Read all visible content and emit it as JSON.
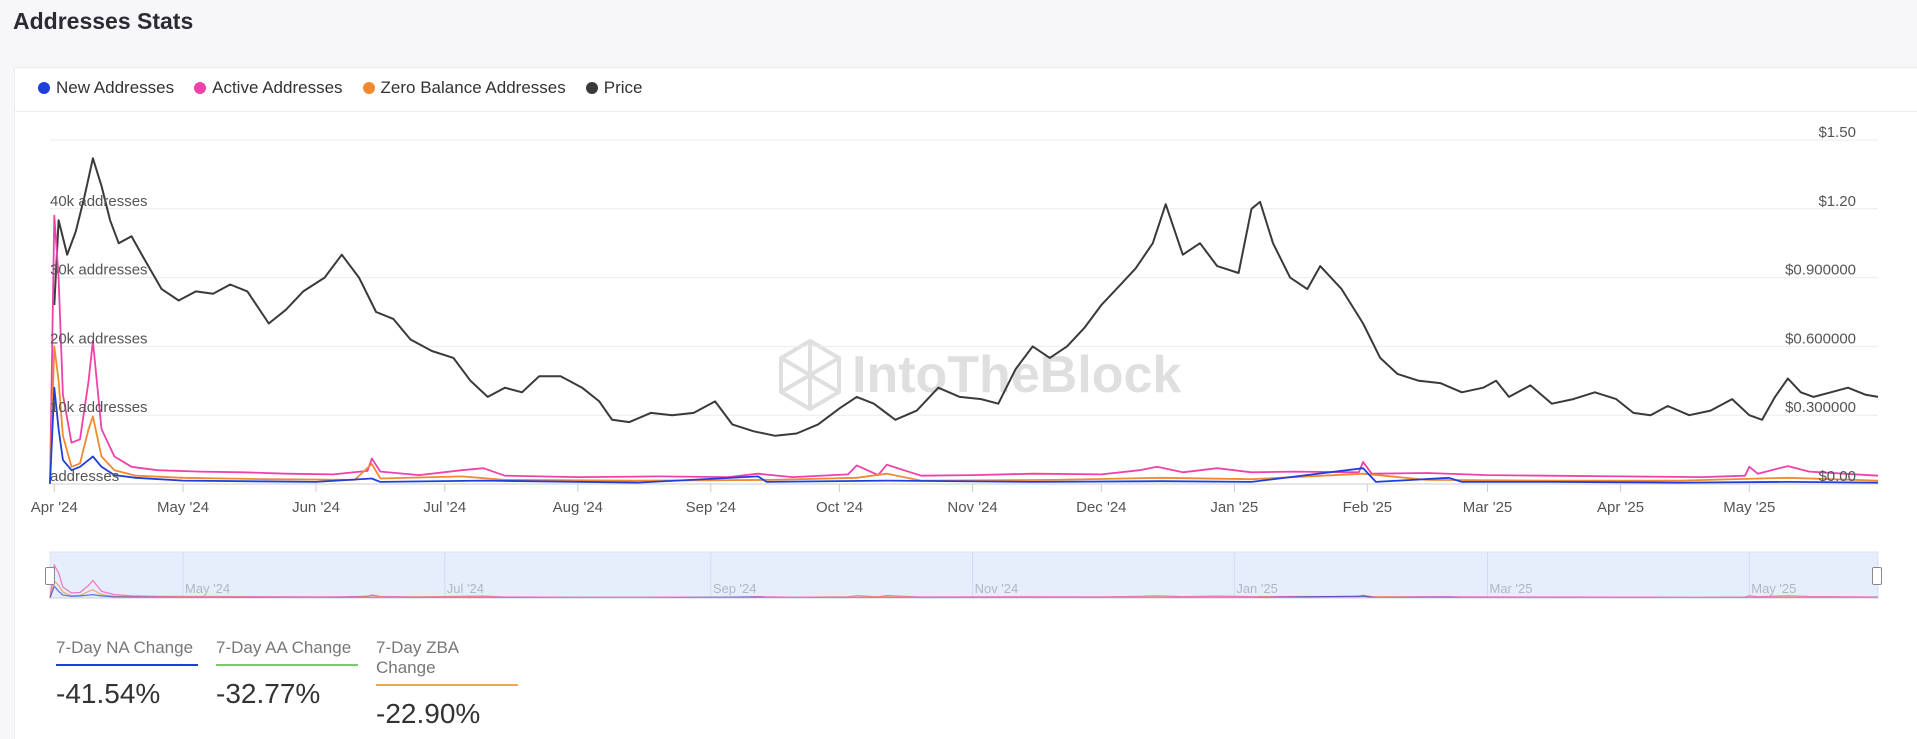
{
  "page": {
    "title": "Addresses Stats"
  },
  "legend": [
    {
      "label": "New Addresses",
      "color": "#1f3fdc"
    },
    {
      "label": "Active Addresses",
      "color": "#ee42aa"
    },
    {
      "label": "Zero Balance Addresses",
      "color": "#f08a32"
    },
    {
      "label": "Price",
      "color": "#3a3a3a"
    }
  ],
  "watermark": "IntoTheBlock",
  "stats": [
    {
      "label": "7-Day NA Change",
      "value": "-41.54%",
      "color": "#1f3fdc"
    },
    {
      "label": "7-Day AA Change",
      "value": "-32.77%",
      "color": "#7dc86a"
    },
    {
      "label": "7-Day ZBA Change",
      "value": "-22.90%",
      "color": "#f0a84a"
    }
  ],
  "chart_data": {
    "type": "line",
    "x_start": "2024-03-31",
    "x_end": "2025-05-31",
    "x_tick_labels": [
      {
        "date": "2024-04-01",
        "label": "Apr '24"
      },
      {
        "date": "2024-05-01",
        "label": "May '24"
      },
      {
        "date": "2024-06-01",
        "label": "Jun '24"
      },
      {
        "date": "2024-07-01",
        "label": "Jul '24"
      },
      {
        "date": "2024-08-01",
        "label": "Aug '24"
      },
      {
        "date": "2024-09-01",
        "label": "Sep '24"
      },
      {
        "date": "2024-10-01",
        "label": "Oct '24"
      },
      {
        "date": "2024-11-01",
        "label": "Nov '24"
      },
      {
        "date": "2024-12-01",
        "label": "Dec '24"
      },
      {
        "date": "2025-01-01",
        "label": "Jan '25"
      },
      {
        "date": "2025-02-01",
        "label": "Feb '25"
      },
      {
        "date": "2025-03-01",
        "label": "Mar '25"
      },
      {
        "date": "2025-04-01",
        "label": "Apr '25"
      },
      {
        "date": "2025-05-01",
        "label": "May '25"
      }
    ],
    "navigator_labels": [
      {
        "date": "2024-05-01",
        "label": "May '24"
      },
      {
        "date": "2024-07-01",
        "label": "Jul '24"
      },
      {
        "date": "2024-09-01",
        "label": "Sep '24"
      },
      {
        "date": "2024-11-01",
        "label": "Nov '24"
      },
      {
        "date": "2025-01-01",
        "label": "Jan '25"
      },
      {
        "date": "2025-03-01",
        "label": "Mar '25"
      },
      {
        "date": "2025-05-01",
        "label": "May '25"
      }
    ],
    "y_left": {
      "ylim": [
        0,
        50000
      ],
      "ticks": [
        {
          "value": 0,
          "label": "addresses"
        },
        {
          "value": 10000,
          "label": "10k addresses"
        },
        {
          "value": 20000,
          "label": "20k addresses"
        },
        {
          "value": 30000,
          "label": "30k addresses"
        },
        {
          "value": 40000,
          "label": "40k addresses"
        }
      ]
    },
    "y_right": {
      "ylim": [
        0,
        1.5
      ],
      "ticks": [
        {
          "value": 0,
          "label": "$0.00"
        },
        {
          "value": 0.3,
          "label": "$0.300000"
        },
        {
          "value": 0.6,
          "label": "$0.600000"
        },
        {
          "value": 0.9,
          "label": "$0.900000"
        },
        {
          "value": 1.2,
          "label": "$1.20"
        },
        {
          "value": 1.5,
          "label": "$1.50"
        }
      ]
    },
    "grid": true,
    "legend_position": "top-left",
    "series": [
      {
        "name": "Price",
        "axis": "right",
        "color": "#3a3a3a",
        "points": [
          [
            "2024-04-01",
            0.78
          ],
          [
            "2024-04-02",
            1.15
          ],
          [
            "2024-04-04",
            1.0
          ],
          [
            "2024-04-06",
            1.1
          ],
          [
            "2024-04-08",
            1.25
          ],
          [
            "2024-04-10",
            1.42
          ],
          [
            "2024-04-12",
            1.3
          ],
          [
            "2024-04-14",
            1.15
          ],
          [
            "2024-04-16",
            1.05
          ],
          [
            "2024-04-19",
            1.08
          ],
          [
            "2024-04-22",
            0.98
          ],
          [
            "2024-04-26",
            0.85
          ],
          [
            "2024-04-30",
            0.8
          ],
          [
            "2024-05-04",
            0.84
          ],
          [
            "2024-05-08",
            0.83
          ],
          [
            "2024-05-12",
            0.87
          ],
          [
            "2024-05-16",
            0.84
          ],
          [
            "2024-05-21",
            0.7
          ],
          [
            "2024-05-25",
            0.76
          ],
          [
            "2024-05-29",
            0.84
          ],
          [
            "2024-06-03",
            0.9
          ],
          [
            "2024-06-07",
            1.0
          ],
          [
            "2024-06-11",
            0.9
          ],
          [
            "2024-06-15",
            0.75
          ],
          [
            "2024-06-19",
            0.72
          ],
          [
            "2024-06-23",
            0.63
          ],
          [
            "2024-06-28",
            0.58
          ],
          [
            "2024-07-03",
            0.55
          ],
          [
            "2024-07-07",
            0.45
          ],
          [
            "2024-07-11",
            0.38
          ],
          [
            "2024-07-15",
            0.42
          ],
          [
            "2024-07-19",
            0.4
          ],
          [
            "2024-07-23",
            0.47
          ],
          [
            "2024-07-28",
            0.47
          ],
          [
            "2024-08-02",
            0.42
          ],
          [
            "2024-08-06",
            0.36
          ],
          [
            "2024-08-09",
            0.28
          ],
          [
            "2024-08-13",
            0.27
          ],
          [
            "2024-08-18",
            0.31
          ],
          [
            "2024-08-23",
            0.3
          ],
          [
            "2024-08-28",
            0.31
          ],
          [
            "2024-09-02",
            0.36
          ],
          [
            "2024-09-06",
            0.26
          ],
          [
            "2024-09-11",
            0.23
          ],
          [
            "2024-09-16",
            0.21
          ],
          [
            "2024-09-21",
            0.22
          ],
          [
            "2024-09-26",
            0.26
          ],
          [
            "2024-10-01",
            0.33
          ],
          [
            "2024-10-05",
            0.38
          ],
          [
            "2024-10-09",
            0.35
          ],
          [
            "2024-10-14",
            0.28
          ],
          [
            "2024-10-19",
            0.32
          ],
          [
            "2024-10-24",
            0.42
          ],
          [
            "2024-10-29",
            0.38
          ],
          [
            "2024-11-03",
            0.37
          ],
          [
            "2024-11-07",
            0.35
          ],
          [
            "2024-11-11",
            0.5
          ],
          [
            "2024-11-15",
            0.6
          ],
          [
            "2024-11-19",
            0.55
          ],
          [
            "2024-11-23",
            0.6
          ],
          [
            "2024-11-27",
            0.68
          ],
          [
            "2024-12-01",
            0.78
          ],
          [
            "2024-12-05",
            0.86
          ],
          [
            "2024-12-09",
            0.94
          ],
          [
            "2024-12-13",
            1.05
          ],
          [
            "2024-12-16",
            1.22
          ],
          [
            "2024-12-20",
            1.0
          ],
          [
            "2024-12-24",
            1.05
          ],
          [
            "2024-12-28",
            0.95
          ],
          [
            "2025-01-02",
            0.92
          ],
          [
            "2025-01-05",
            1.2
          ],
          [
            "2025-01-07",
            1.23
          ],
          [
            "2025-01-10",
            1.05
          ],
          [
            "2025-01-14",
            0.9
          ],
          [
            "2025-01-18",
            0.85
          ],
          [
            "2025-01-21",
            0.95
          ],
          [
            "2025-01-26",
            0.85
          ],
          [
            "2025-01-31",
            0.7
          ],
          [
            "2025-02-04",
            0.55
          ],
          [
            "2025-02-08",
            0.48
          ],
          [
            "2025-02-13",
            0.45
          ],
          [
            "2025-02-18",
            0.44
          ],
          [
            "2025-02-23",
            0.4
          ],
          [
            "2025-02-28",
            0.42
          ],
          [
            "2025-03-03",
            0.45
          ],
          [
            "2025-03-06",
            0.38
          ],
          [
            "2025-03-11",
            0.43
          ],
          [
            "2025-03-16",
            0.35
          ],
          [
            "2025-03-21",
            0.37
          ],
          [
            "2025-03-26",
            0.4
          ],
          [
            "2025-03-31",
            0.37
          ],
          [
            "2025-04-04",
            0.31
          ],
          [
            "2025-04-08",
            0.3
          ],
          [
            "2025-04-12",
            0.34
          ],
          [
            "2025-04-17",
            0.3
          ],
          [
            "2025-04-22",
            0.32
          ],
          [
            "2025-04-27",
            0.37
          ],
          [
            "2025-05-01",
            0.3
          ],
          [
            "2025-05-04",
            0.28
          ],
          [
            "2025-05-07",
            0.38
          ],
          [
            "2025-05-10",
            0.46
          ],
          [
            "2025-05-13",
            0.4
          ],
          [
            "2025-05-16",
            0.38
          ],
          [
            "2025-05-20",
            0.4
          ],
          [
            "2025-05-24",
            0.42
          ],
          [
            "2025-05-28",
            0.39
          ],
          [
            "2025-05-31",
            0.38
          ]
        ]
      },
      {
        "name": "Active Addresses",
        "axis": "left",
        "color": "#ee42aa",
        "points": [
          [
            "2024-03-31",
            0
          ],
          [
            "2024-04-01",
            39000
          ],
          [
            "2024-04-02",
            30000
          ],
          [
            "2024-04-03",
            13000
          ],
          [
            "2024-04-05",
            6000
          ],
          [
            "2024-04-07",
            6500
          ],
          [
            "2024-04-09",
            15000
          ],
          [
            "2024-04-10",
            20800
          ],
          [
            "2024-04-12",
            8000
          ],
          [
            "2024-04-15",
            4000
          ],
          [
            "2024-04-19",
            2500
          ],
          [
            "2024-04-25",
            2000
          ],
          [
            "2024-05-05",
            1800
          ],
          [
            "2024-05-15",
            1700
          ],
          [
            "2024-05-25",
            1500
          ],
          [
            "2024-06-05",
            1400
          ],
          [
            "2024-06-13",
            1900
          ],
          [
            "2024-06-14",
            3700
          ],
          [
            "2024-06-16",
            1800
          ],
          [
            "2024-06-25",
            1300
          ],
          [
            "2024-07-05",
            2000
          ],
          [
            "2024-07-10",
            2300
          ],
          [
            "2024-07-15",
            1200
          ],
          [
            "2024-08-01",
            1000
          ],
          [
            "2024-08-20",
            1100
          ],
          [
            "2024-09-05",
            1000
          ],
          [
            "2024-09-12",
            1500
          ],
          [
            "2024-09-20",
            1000
          ],
          [
            "2024-10-03",
            1400
          ],
          [
            "2024-10-05",
            2700
          ],
          [
            "2024-10-10",
            1300
          ],
          [
            "2024-10-12",
            2800
          ],
          [
            "2024-10-20",
            1200
          ],
          [
            "2024-11-01",
            1300
          ],
          [
            "2024-11-15",
            1500
          ],
          [
            "2024-12-01",
            1400
          ],
          [
            "2024-12-10",
            2000
          ],
          [
            "2024-12-14",
            2500
          ],
          [
            "2024-12-20",
            1700
          ],
          [
            "2024-12-28",
            2300
          ],
          [
            "2025-01-05",
            1700
          ],
          [
            "2025-01-15",
            1800
          ],
          [
            "2025-01-30",
            1700
          ],
          [
            "2025-01-31",
            3200
          ],
          [
            "2025-02-02",
            1500
          ],
          [
            "2025-02-15",
            1600
          ],
          [
            "2025-03-01",
            1300
          ],
          [
            "2025-03-15",
            1200
          ],
          [
            "2025-04-01",
            1100
          ],
          [
            "2025-04-20",
            1000
          ],
          [
            "2025-04-30",
            1200
          ],
          [
            "2025-05-01",
            2500
          ],
          [
            "2025-05-03",
            1500
          ],
          [
            "2025-05-10",
            2600
          ],
          [
            "2025-05-15",
            1800
          ],
          [
            "2025-05-31",
            1200
          ]
        ]
      },
      {
        "name": "Zero Balance Addresses",
        "axis": "left",
        "color": "#f08a32",
        "points": [
          [
            "2024-03-31",
            0
          ],
          [
            "2024-04-01",
            20000
          ],
          [
            "2024-04-02",
            15000
          ],
          [
            "2024-04-03",
            7000
          ],
          [
            "2024-04-05",
            2500
          ],
          [
            "2024-04-07",
            3000
          ],
          [
            "2024-04-09",
            8000
          ],
          [
            "2024-04-10",
            9800
          ],
          [
            "2024-04-12",
            4000
          ],
          [
            "2024-04-15",
            2000
          ],
          [
            "2024-04-20",
            1200
          ],
          [
            "2024-05-01",
            900
          ],
          [
            "2024-05-20",
            700
          ],
          [
            "2024-06-10",
            600
          ],
          [
            "2024-06-14",
            2900
          ],
          [
            "2024-06-16",
            800
          ],
          [
            "2024-07-05",
            1100
          ],
          [
            "2024-07-15",
            600
          ],
          [
            "2024-08-15",
            500
          ],
          [
            "2024-09-15",
            600
          ],
          [
            "2024-10-05",
            900
          ],
          [
            "2024-10-12",
            1500
          ],
          [
            "2024-10-20",
            500
          ],
          [
            "2024-11-20",
            600
          ],
          [
            "2024-12-15",
            900
          ],
          [
            "2025-01-05",
            700
          ],
          [
            "2025-01-31",
            1500
          ],
          [
            "2025-02-15",
            600
          ],
          [
            "2025-03-15",
            500
          ],
          [
            "2025-04-15",
            500
          ],
          [
            "2025-05-10",
            900
          ],
          [
            "2025-05-31",
            500
          ]
        ]
      },
      {
        "name": "New Addresses",
        "axis": "left",
        "color": "#1f3fdc",
        "points": [
          [
            "2024-03-31",
            0
          ],
          [
            "2024-04-01",
            14000
          ],
          [
            "2024-04-02",
            8000
          ],
          [
            "2024-04-03",
            3500
          ],
          [
            "2024-04-05",
            2000
          ],
          [
            "2024-04-07",
            2500
          ],
          [
            "2024-04-09",
            3500
          ],
          [
            "2024-04-10",
            4000
          ],
          [
            "2024-04-12",
            2500
          ],
          [
            "2024-04-15",
            1300
          ],
          [
            "2024-04-20",
            900
          ],
          [
            "2024-05-01",
            500
          ],
          [
            "2024-06-01",
            300
          ],
          [
            "2024-06-14",
            800
          ],
          [
            "2024-06-16",
            300
          ],
          [
            "2024-07-10",
            500
          ],
          [
            "2024-08-15",
            200
          ],
          [
            "2024-09-12",
            1100
          ],
          [
            "2024-09-14",
            300
          ],
          [
            "2024-10-12",
            500
          ],
          [
            "2024-11-15",
            300
          ],
          [
            "2024-12-15",
            400
          ],
          [
            "2025-01-05",
            300
          ],
          [
            "2025-01-31",
            2300
          ],
          [
            "2025-02-03",
            300
          ],
          [
            "2025-02-20",
            900
          ],
          [
            "2025-02-23",
            300
          ],
          [
            "2025-03-15",
            300
          ],
          [
            "2025-04-15",
            200
          ],
          [
            "2025-05-10",
            300
          ],
          [
            "2025-05-31",
            200
          ]
        ]
      }
    ]
  }
}
